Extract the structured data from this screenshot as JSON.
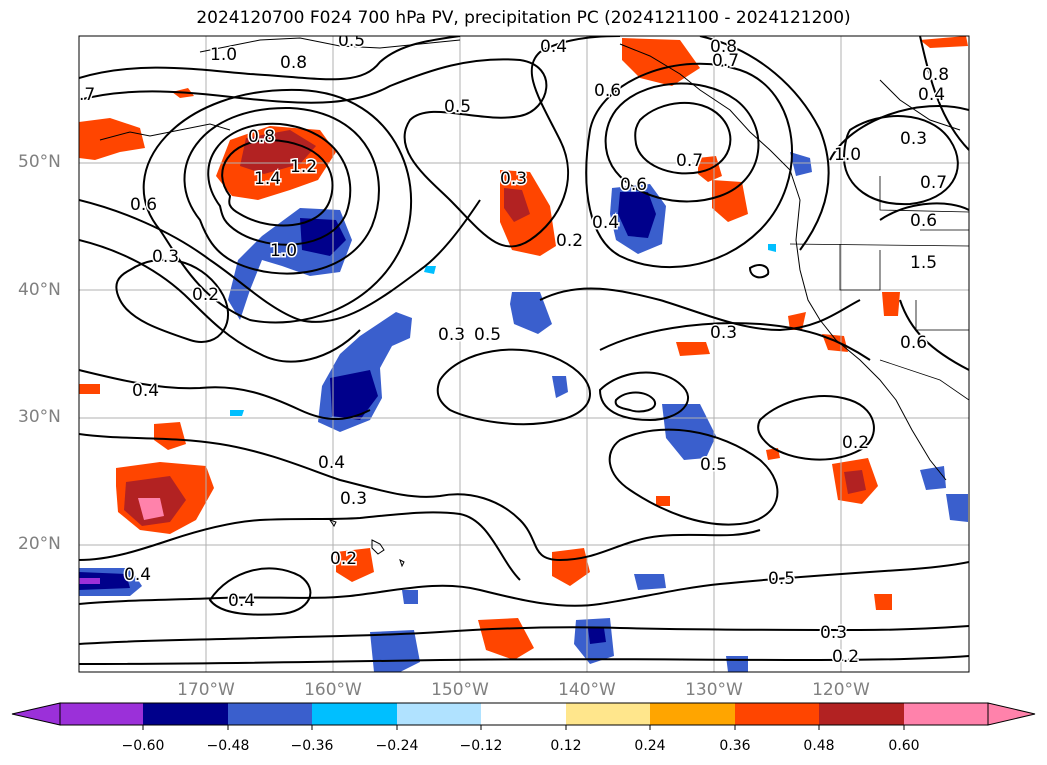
{
  "title": "2024120700 F024 700 hPa PV, precipitation PC (2024121100 - 2024121200)",
  "lat_labels": [
    "50°N",
    "40°N",
    "30°N",
    "20°N"
  ],
  "lon_labels": [
    "170°W",
    "160°W",
    "150°W",
    "140°W",
    "130°W",
    "120°W"
  ],
  "colorbar": {
    "ticks": [
      "−0.60",
      "−0.48",
      "−0.36",
      "−0.24",
      "−0.12",
      "0.12",
      "0.24",
      "0.36",
      "0.48",
      "0.60"
    ],
    "colors": [
      "#9b30d9",
      "#00008b",
      "#3a5fcd",
      "#00bfff",
      "#b0e2ff",
      "#ffffff",
      "#ffe68c",
      "#ffa500",
      "#ff4500",
      "#b22222",
      "#ff82ab"
    ]
  },
  "contour_labels": [
    "1.0",
    "0.8",
    ".7",
    "0.8",
    "1.4",
    "1.2",
    "0.6",
    "1.0",
    "0.3",
    "0.2",
    "0.4",
    "0.5",
    "0.4",
    "0.3",
    "0.4",
    "0.3",
    "0.2",
    "0.4",
    "0.4",
    "0.5",
    "0.3",
    "0.2",
    "0.5",
    "0.6",
    "0.4",
    "0.7",
    "0.8",
    "0.7",
    "0.6",
    "0.5",
    "0.3",
    "0.5",
    "0.2",
    "0.3",
    "0.2",
    "0.3",
    "1.0",
    "0.7",
    "0.8",
    "0.6",
    "1.5",
    "0.6",
    "0.4",
    "0.6"
  ]
}
